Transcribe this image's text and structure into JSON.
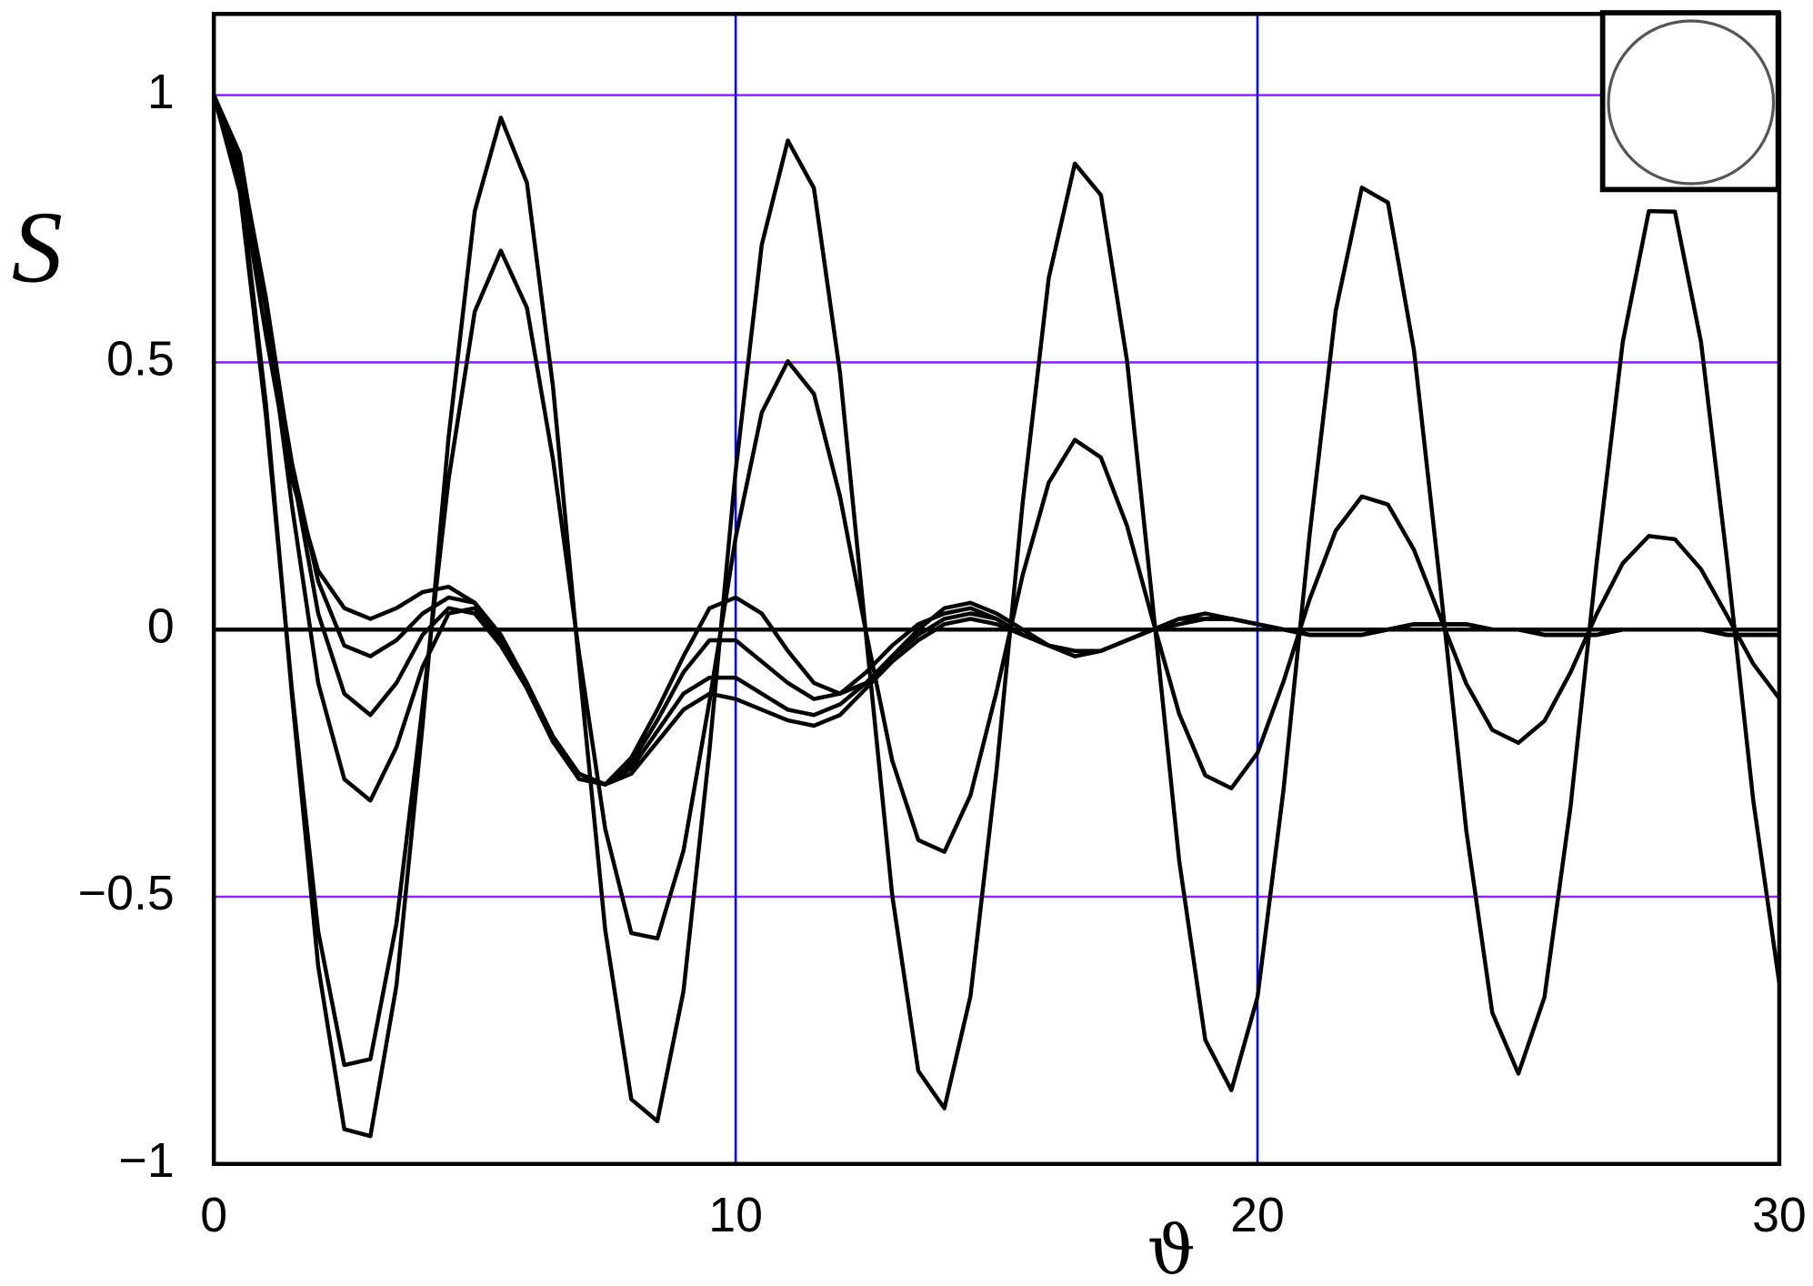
{
  "chart_data": {
    "type": "line",
    "y_label": "S",
    "x_label": "ϑ",
    "xlim": [
      0,
      30
    ],
    "ylim": [
      -1,
      1.152
    ],
    "xticks": [
      0,
      10,
      20,
      30
    ],
    "yticks": [
      {
        "value": -1,
        "label": "−1"
      },
      {
        "value": -0.5,
        "label": "−0.5"
      },
      0,
      0.5,
      1
    ],
    "grid": true,
    "x_grid_color": "#0000ff",
    "y_grid_color": "#8a2be2",
    "x": [
      0,
      0.5,
      1,
      1.5,
      2,
      2.5,
      3,
      3.5,
      4,
      4.5,
      5,
      5.5,
      6,
      6.5,
      7,
      7.5,
      8,
      8.5,
      9,
      9.5,
      10,
      10.5,
      11,
      11.5,
      12,
      12.5,
      13,
      13.5,
      14,
      14.5,
      15,
      15.5,
      16,
      16.5,
      17,
      17.5,
      18,
      18.5,
      19,
      19.5,
      20,
      20.5,
      21,
      21.5,
      22,
      22.5,
      23,
      23.5,
      24,
      24.5,
      25,
      25.5,
      26,
      26.5,
      27,
      27.5,
      28,
      28.5,
      29,
      29.5,
      30
    ],
    "series": [
      {
        "color": "#000000",
        "values": [
          1,
          0.841,
          0.421,
          -0.126,
          -0.63,
          -0.935,
          -0.948,
          -0.666,
          -0.179,
          0.361,
          0.783,
          0.958,
          0.836,
          0.454,
          -0.067,
          -0.562,
          -0.879,
          -0.92,
          -0.677,
          -0.224,
          0.297,
          0.72,
          0.915,
          0.826,
          0.48,
          -0.012,
          -0.497,
          -0.826,
          -0.896,
          -0.686,
          -0.263,
          0.237,
          0.658,
          0.872,
          0.813,
          0.503,
          0.039,
          -0.433,
          -0.768,
          -0.862,
          -0.688,
          -0.299,
          0.178,
          0.597,
          0.827,
          0.799,
          0.522,
          0.085,
          -0.375,
          -0.717,
          -0.831,
          -0.688,
          -0.331,
          0.125,
          0.538,
          0.783,
          0.782,
          0.538,
          0.128,
          -0.319,
          -0.662
        ]
      },
      {
        "color": "#000000",
        "values": [
          1,
          0.818,
          0.399,
          -0.116,
          -0.565,
          -0.815,
          -0.804,
          -0.55,
          -0.144,
          0.282,
          0.595,
          0.709,
          0.602,
          0.318,
          -0.045,
          -0.373,
          -0.568,
          -0.578,
          -0.414,
          -0.133,
          0.172,
          0.406,
          0.502,
          0.441,
          0.249,
          -0.006,
          -0.245,
          -0.394,
          -0.416,
          -0.31,
          -0.116,
          0.102,
          0.275,
          0.355,
          0.322,
          0.194,
          0.015,
          -0.158,
          -0.273,
          -0.297,
          -0.231,
          -0.097,
          0.057,
          0.185,
          0.249,
          0.234,
          0.149,
          0.024,
          -0.101,
          -0.188,
          -0.212,
          -0.171,
          -0.08,
          0.029,
          0.124,
          0.175,
          0.169,
          0.113,
          0.026,
          -0.064,
          -0.129
        ]
      },
      {
        "color": "#000000",
        "values": [
          1,
          0.89,
          0.6,
          0.23,
          -0.1,
          -0.28,
          -0.32,
          -0.22,
          -0.07,
          0.03,
          0.04,
          -0.02,
          -0.11,
          -0.21,
          -0.27,
          -0.29,
          -0.27,
          -0.21,
          -0.15,
          -0.12,
          -0.13,
          -0.15,
          -0.17,
          -0.18,
          -0.16,
          -0.11,
          -0.06,
          -0.02,
          0.01,
          0.02,
          0.01,
          -0.01,
          -0.03,
          -0.04,
          -0.04,
          -0.02,
          0,
          0.01,
          0.02,
          0.02,
          0.01,
          0,
          -0.01,
          -0.01,
          -0.01,
          0,
          0.01,
          0.01,
          0.01,
          0,
          0,
          -0.01,
          -0.01,
          -0.01,
          0,
          0,
          0,
          0,
          -0.01,
          -0.01,
          -0.01
        ]
      },
      {
        "color": "#000000",
        "values": [
          1,
          0.88,
          0.62,
          0.3,
          0.03,
          -0.12,
          -0.16,
          -0.1,
          -0.01,
          0.04,
          0.03,
          -0.03,
          -0.11,
          -0.21,
          -0.27,
          -0.29,
          -0.26,
          -0.19,
          -0.12,
          -0.09,
          -0.09,
          -0.12,
          -0.15,
          -0.16,
          -0.14,
          -0.1,
          -0.05,
          -0.01,
          0.02,
          0.03,
          0.02,
          -0.01,
          -0.03,
          -0.04,
          -0.04,
          -0.02,
          0,
          0.01,
          0.02,
          0.02,
          0.01,
          0,
          -0.01,
          -0.01,
          -0.01,
          0,
          0.01,
          0.01,
          0.01,
          0,
          0,
          -0.01,
          -0.01,
          -0.01,
          0,
          0,
          0,
          0,
          -0.01,
          -0.01,
          -0.01
        ]
      },
      {
        "color": "#000000",
        "values": [
          1,
          0.87,
          0.6,
          0.31,
          0.09,
          -0.03,
          -0.05,
          -0.02,
          0.03,
          0.06,
          0.05,
          -0.01,
          -0.1,
          -0.2,
          -0.27,
          -0.29,
          -0.25,
          -0.17,
          -0.08,
          -0.02,
          -0.02,
          -0.06,
          -0.1,
          -0.13,
          -0.12,
          -0.08,
          -0.03,
          0.01,
          0.03,
          0.04,
          0.02,
          -0.01,
          -0.03,
          -0.05,
          -0.04,
          -0.02,
          0,
          0.02,
          0.03,
          0.02,
          0.01,
          0,
          -0.01,
          -0.01,
          -0.01,
          0,
          0.01,
          0.01,
          0.01,
          0,
          0,
          -0.01,
          -0.01,
          -0.01,
          0,
          0,
          0,
          0,
          -0.01,
          -0.01,
          -0.01
        ]
      },
      {
        "color": "#000000",
        "values": [
          1,
          0.85,
          0.55,
          0.28,
          0.11,
          0.04,
          0.02,
          0.04,
          0.07,
          0.08,
          0.05,
          -0.02,
          -0.11,
          -0.21,
          -0.28,
          -0.29,
          -0.24,
          -0.15,
          -0.05,
          0.04,
          0.06,
          0.03,
          -0.04,
          -0.1,
          -0.12,
          -0.1,
          -0.05,
          0,
          0.04,
          0.05,
          0.03,
          0,
          -0.03,
          -0.05,
          -0.04,
          -0.02,
          0,
          0.02,
          0.02,
          0.02,
          0.01,
          0,
          -0.01,
          -0.01,
          -0.01,
          0,
          0.01,
          0.01,
          0.01,
          0,
          0,
          -0.01,
          -0.01,
          -0.01,
          0,
          0,
          0,
          0,
          -0.01,
          -0.01,
          -0.01
        ]
      }
    ]
  }
}
